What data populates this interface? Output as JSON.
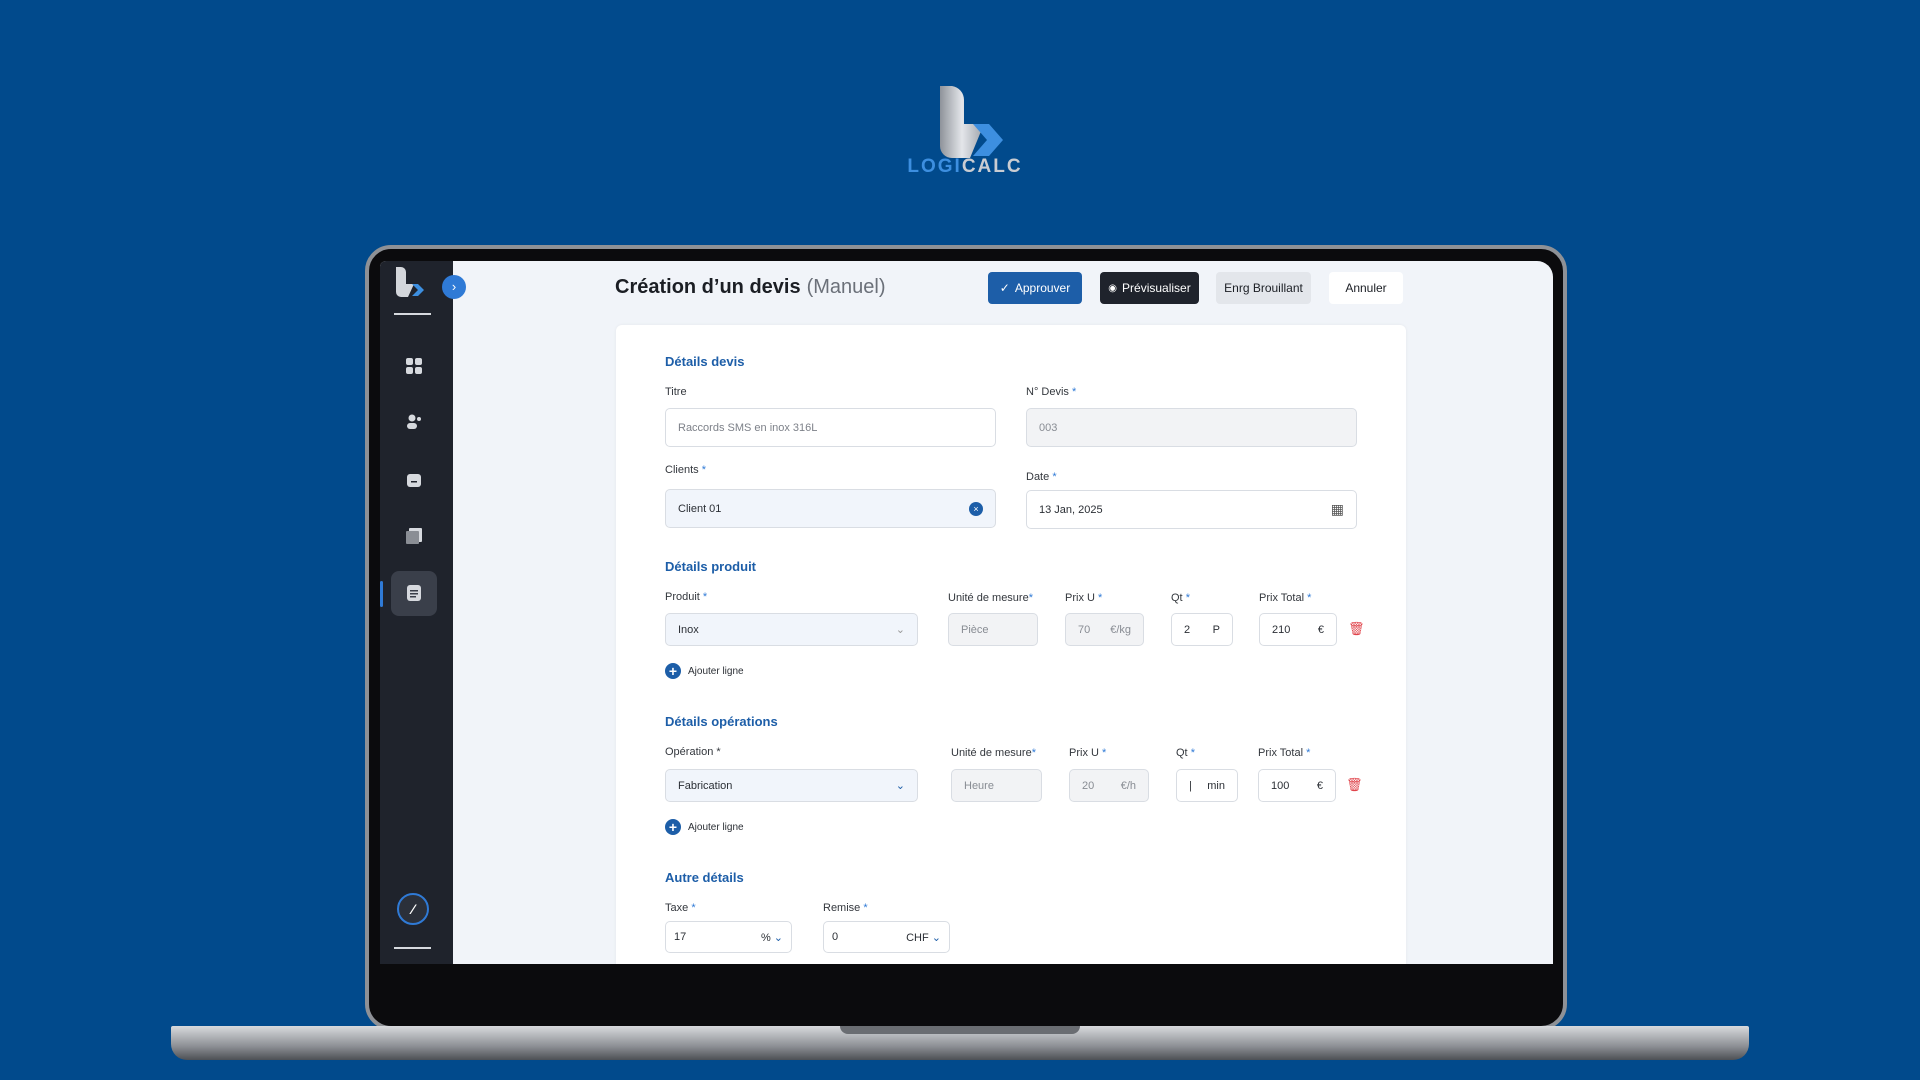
{
  "brand": {
    "name_part1": "LOGI",
    "name_part2": "CALC",
    "colors": {
      "background": "#014a8c",
      "primary": "#1d5ea8",
      "danger": "#e0434a"
    }
  },
  "header": {
    "title": "Création d’un devis",
    "subtitle": "(Manuel)",
    "buttons": {
      "approve": "Approuver",
      "preview": "Prévisualiser",
      "draft": "Enrg Brouillant",
      "cancel": "Annuler"
    }
  },
  "sidebar": {
    "items": [
      {
        "icon": "grid-icon"
      },
      {
        "icon": "users-icon"
      },
      {
        "icon": "folder-icon"
      },
      {
        "icon": "book-icon"
      },
      {
        "icon": "document-icon",
        "active": true
      }
    ]
  },
  "devis": {
    "section": "Détails devis",
    "titre": {
      "label": "Titre",
      "placeholder": "Raccords SMS en inox 316L"
    },
    "numero": {
      "label": "N° Devis",
      "value": "003"
    },
    "clients": {
      "label": "Clients",
      "value": "Client 01"
    },
    "date": {
      "label": "Date",
      "value": "13 Jan, 2025"
    }
  },
  "produit": {
    "section": "Détails produit",
    "labels": {
      "produit": "Produit",
      "unite": "Unité de mesure",
      "prix": "Prix U",
      "qt": "Qt",
      "total": "Prix Total"
    },
    "row": {
      "produit": "Inox",
      "unite": "Pièce",
      "prix": "70",
      "prix_unit": "€/kg",
      "qt": "2",
      "qt_unit": "P",
      "total": "210",
      "total_unit": "€"
    },
    "add": "Ajouter ligne"
  },
  "operations": {
    "section": "Détails opérations",
    "labels": {
      "operation": "Opération",
      "unite": "Unité de mesure",
      "prix": "Prix U",
      "qt": "Qt",
      "total": "Prix Total"
    },
    "row": {
      "operation": "Fabrication",
      "unite": "Heure",
      "prix": "20",
      "prix_unit": "€/h",
      "qt": "|",
      "qt_unit": "min",
      "total": "100",
      "total_unit": "€"
    },
    "add": "Ajouter ligne"
  },
  "autre": {
    "section": "Autre détails",
    "taxe": {
      "label": "Taxe",
      "value": "17",
      "unit": "%"
    },
    "remise": {
      "label": "Remise",
      "value": "0",
      "unit": "CHF"
    }
  },
  "required_mark": "*"
}
